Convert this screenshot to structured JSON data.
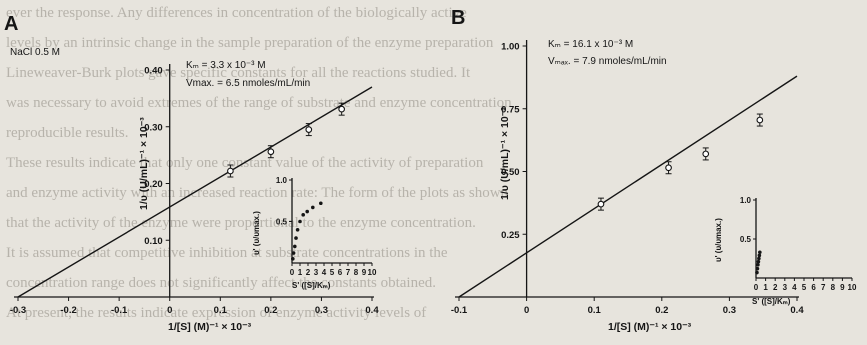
{
  "background_text": [
    "ever the response. Any differences in concentration of the biologically active",
    "levels by an intrinsic change in the sample preparation of the enzyme preparation",
    "Lineweaver-Burk plots gave specific constants for all the reactions studied. It",
    "was necessary to avoid extremes of the range of substrate and enzyme concentration",
    "reproducible results.",
    "    These results indicate that only one constant value of the activity of preparation",
    "and enzyme activity with an increased reaction rate: The form of the plots as shown",
    "that the activity of the enzyme were proportional to the enzyme concentration.",
    "It is assumed that competitive inhibition at substrate concentrations in the",
    "concentration range does not significantly affect the constants obtained.",
    "    At present, the results indicate expression of enzyme activity levels of"
  ],
  "colors": {
    "background": "#e7e4dd",
    "ink": "#151515",
    "ghost_text": "#b7b3ab"
  },
  "chart_data": [
    {
      "panel": "A",
      "type": "line",
      "annotation": "NaCl 0.5 M",
      "km": "Kₘ = 3.3 x 10⁻³ M",
      "vmax": "Vmax. = 6.5 nmoles/mL/min",
      "ylabel": "1/υ (U/mL)⁻¹ × 10⁻³",
      "xlabel": "1/[S] (M)⁻¹ × 10⁻³",
      "xlim": [
        -0.3,
        0.4
      ],
      "ylim": [
        0,
        0.4
      ],
      "xticks": [
        "-0.3",
        "-0.2",
        "-0.1",
        "0",
        "0.1",
        "0.2",
        "0.3",
        "0.4"
      ],
      "yticks": [
        "0.10",
        "0.20",
        "0.30",
        "0.40"
      ],
      "fit_line": {
        "x": [
          -0.3,
          0.4
        ],
        "y": [
          0,
          0.37
        ]
      },
      "points": [
        {
          "x": 0.12,
          "y": 0.222
        },
        {
          "x": 0.2,
          "y": 0.256
        },
        {
          "x": 0.275,
          "y": 0.295
        },
        {
          "x": 0.34,
          "y": 0.331
        }
      ],
      "inset": {
        "type": "scatter",
        "ylabel": "υ' (υ/υmax.)",
        "xlabel": "S' ([S]/Kₘ)",
        "xlim": [
          0,
          10
        ],
        "ylim": [
          0,
          1
        ],
        "xticks": [
          "0",
          "1",
          "2",
          "3",
          "4",
          "5",
          "6",
          "7",
          "8",
          "9",
          "10"
        ],
        "yticks": [
          "0.5",
          "1.0"
        ],
        "points": [
          {
            "x": 0.1,
            "y": 0.05
          },
          {
            "x": 0.2,
            "y": 0.12
          },
          {
            "x": 0.35,
            "y": 0.2
          },
          {
            "x": 0.5,
            "y": 0.3
          },
          {
            "x": 0.7,
            "y": 0.4
          },
          {
            "x": 1.0,
            "y": 0.5
          },
          {
            "x": 1.4,
            "y": 0.58
          },
          {
            "x": 1.9,
            "y": 0.62
          },
          {
            "x": 2.6,
            "y": 0.67
          },
          {
            "x": 3.6,
            "y": 0.72
          }
        ]
      }
    },
    {
      "panel": "B",
      "type": "line",
      "annotation": "",
      "km": "Kₘ = 16.1 x 10⁻³ M",
      "vmax": "Vₘₐₓ. = 7.9 nmoles/mL/min",
      "ylabel": "1/υ (U/mL)⁻¹ × 10⁻³",
      "xlabel": "1/[S] (M)⁻¹ × 10⁻³",
      "xlim": [
        -0.1,
        0.4
      ],
      "ylim": [
        0,
        1.0
      ],
      "xticks": [
        "-0.1",
        "0",
        "0.1",
        "0.2",
        "0.3",
        "0.4"
      ],
      "yticks": [
        "0.25",
        "0.50",
        "0.75",
        "1.00"
      ],
      "fit_line": {
        "x": [
          -0.1,
          0.4
        ],
        "y": [
          0,
          0.88
        ]
      },
      "points": [
        {
          "x": 0.11,
          "y": 0.37
        },
        {
          "x": 0.21,
          "y": 0.515
        },
        {
          "x": 0.265,
          "y": 0.57
        },
        {
          "x": 0.345,
          "y": 0.705
        }
      ],
      "inset": {
        "type": "scatter",
        "ylabel": "υ' (υ/υmax.)",
        "xlabel": "S' ([S]/Kₘ)",
        "xlim": [
          0,
          10
        ],
        "ylim": [
          0,
          1
        ],
        "xticks": [
          "0",
          "1",
          "2",
          "3",
          "4",
          "5",
          "6",
          "7",
          "8",
          "9",
          "10"
        ],
        "yticks": [
          "0.5",
          "1.0"
        ],
        "points": [
          {
            "x": 0.1,
            "y": 0.07
          },
          {
            "x": 0.15,
            "y": 0.12
          },
          {
            "x": 0.2,
            "y": 0.17
          },
          {
            "x": 0.25,
            "y": 0.21
          },
          {
            "x": 0.3,
            "y": 0.25
          },
          {
            "x": 0.35,
            "y": 0.29
          },
          {
            "x": 0.4,
            "y": 0.33
          }
        ]
      }
    }
  ]
}
